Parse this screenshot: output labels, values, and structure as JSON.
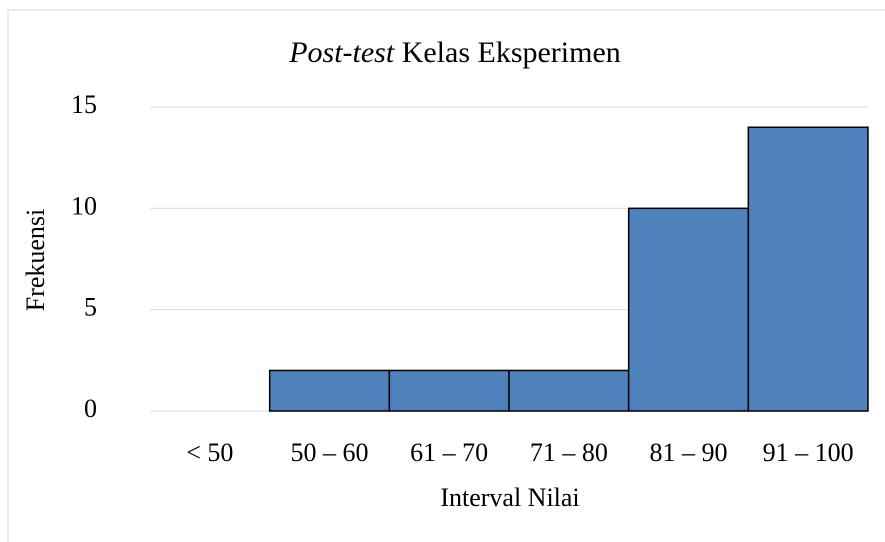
{
  "chart_data": {
    "type": "bar",
    "title": [
      "Post-test",
      "Kelas Eksperimen"
    ],
    "x_label": "Interval Nilai",
    "y_label": "Frekuensi",
    "categories": [
      "< 50",
      "50 – 60",
      "61 – 70",
      "71 – 80",
      "81 – 90",
      "91 – 100"
    ],
    "values": [
      0,
      2,
      2,
      2,
      10,
      14
    ],
    "color": "#4f81bd",
    "ylim": [
      0,
      15
    ],
    "yticks": [
      0,
      5,
      10,
      15
    ],
    "grid": true
  }
}
